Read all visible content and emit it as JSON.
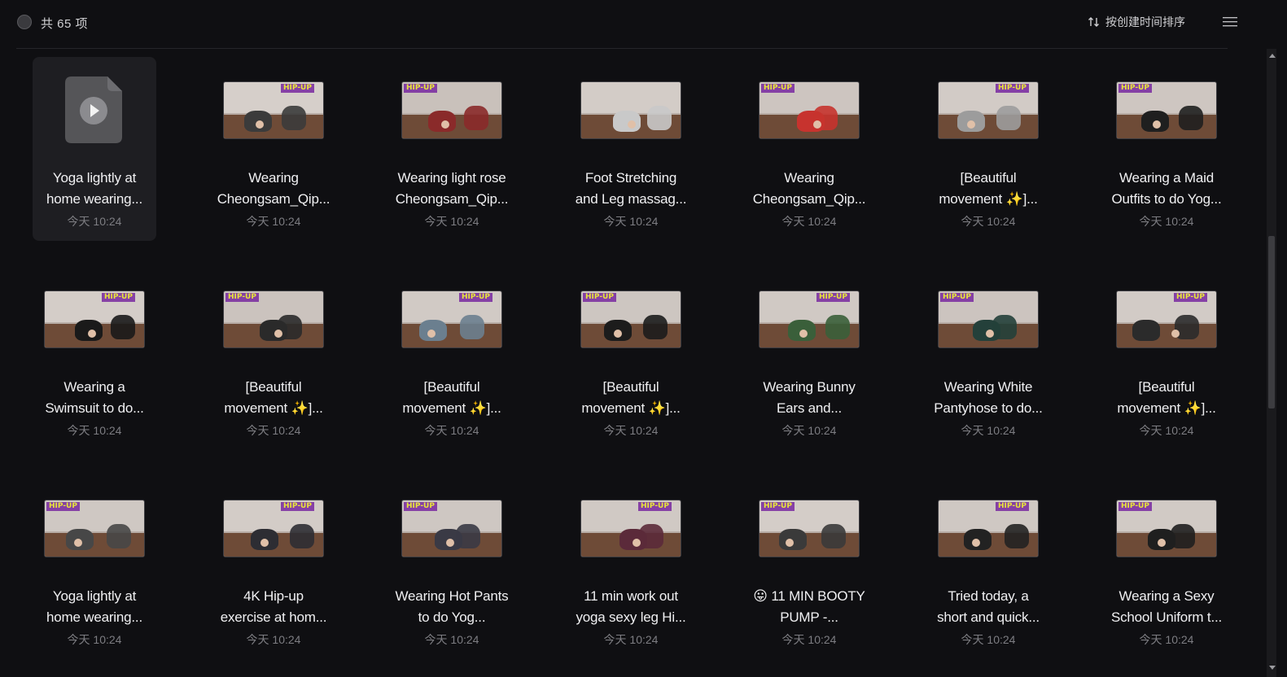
{
  "header": {
    "count_label": "共 65 项",
    "sort_label": "按创建时间排序"
  },
  "icons": {
    "select": "circle-icon",
    "sort": "sort-arrows-icon",
    "menu": "hamburger-menu-icon",
    "file": "video-file-icon"
  },
  "colors": {
    "background": "#0f0f12",
    "selected_card": "#1e1e22",
    "time_text": "#7d7d82",
    "thumb_tag": "#e8e63a"
  },
  "items": [
    {
      "title": "Yoga lightly at home wearing...",
      "time": "今天 10:24",
      "thumb": "none",
      "selected": true
    },
    {
      "title": "Wearing Cheongsam_Qip...",
      "time": "今天 10:24",
      "thumb": "HIP-UP"
    },
    {
      "title": "Wearing light rose Cheongsam_Qip...",
      "time": "今天 10:24",
      "thumb": "HIP-UP"
    },
    {
      "title": "Foot Stretching and Leg massag...",
      "time": "今天 10:24",
      "thumb": ""
    },
    {
      "title": "Wearing Cheongsam_Qip...",
      "time": "今天 10:24",
      "thumb": "HIP-UP"
    },
    {
      "title": "[Beautiful movement ✨]...",
      "time": "今天 10:24",
      "thumb": "HIP-UP"
    },
    {
      "title": "Wearing a Maid Outfits to do Yog...",
      "time": "今天 10:24",
      "thumb": "HIP-UP"
    },
    {
      "title": "Wearing a Swimsuit to do...",
      "time": "今天 10:24",
      "thumb": "HIP-UP"
    },
    {
      "title": "[Beautiful movement ✨]...",
      "time": "今天 10:24",
      "thumb": "HIP-UP"
    },
    {
      "title": "[Beautiful movement ✨]...",
      "time": "今天 10:24",
      "thumb": "HIP-UP"
    },
    {
      "title": "[Beautiful movement ✨]...",
      "time": "今天 10:24",
      "thumb": "HIP-UP"
    },
    {
      "title": "Wearing Bunny Ears and...",
      "time": "今天 10:24",
      "thumb": "HIP-UP"
    },
    {
      "title": "Wearing White Pantyhose to do...",
      "time": "今天 10:24",
      "thumb": "HIP-UP"
    },
    {
      "title": "[Beautiful movement ✨]...",
      "time": "今天 10:24",
      "thumb": "HIP-UP"
    },
    {
      "title": "Yoga lightly at home wearing...",
      "time": "今天 10:24",
      "thumb": "HIP-UP"
    },
    {
      "title": "4K Hip-up exercise at hom...",
      "time": "今天 10:24",
      "thumb": "HIP-UP"
    },
    {
      "title": "Wearing Hot Pants to do Yog...",
      "time": "今天 10:24",
      "thumb": "HIP-UP"
    },
    {
      "title": "11 min work out yoga sexy leg Hi...",
      "time": "今天 10:24",
      "thumb": "HIP-UP"
    },
    {
      "title": "😛 11 MIN BOOTY PUMP -...",
      "time": "今天 10:24",
      "thumb": "HIP-UP"
    },
    {
      "title": "Tried today, a short and quick...",
      "time": "今天 10:24",
      "thumb": "HIP-UP"
    },
    {
      "title": "Wearing a Sexy School Uniform t...",
      "time": "今天 10:24",
      "thumb": "HIP-UP"
    }
  ]
}
